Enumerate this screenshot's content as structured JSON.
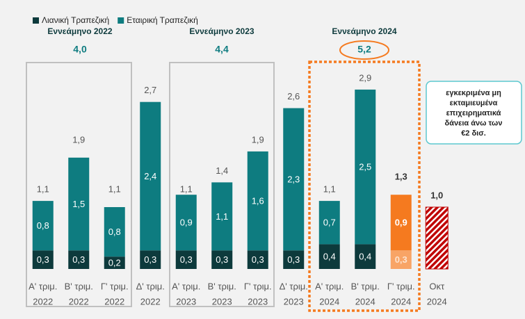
{
  "chart_data": {
    "type": "bar",
    "stacked": true,
    "legend": "top-left",
    "categories": [
      [
        "Α' τριμ.",
        "2022"
      ],
      [
        "Β' τριμ.",
        "2022"
      ],
      [
        "Γ' τριμ.",
        "2022"
      ],
      [
        "Δ' τριμ.",
        "2022"
      ],
      [
        "Α' τριμ.",
        "2023"
      ],
      [
        "Β' τριμ.",
        "2023"
      ],
      [
        "Γ' τριμ.",
        "2023"
      ],
      [
        "Δ' τριμ.",
        "2023"
      ],
      [
        "Α' τριμ.",
        "2024"
      ],
      [
        "Β' τριμ.",
        "2024"
      ],
      [
        "Γ' τριμ.",
        "2024"
      ],
      [
        "Οκτ",
        "2024"
      ]
    ],
    "series": [
      {
        "name": "Λιανική Τραπεζική",
        "color": "#0d3a3c",
        "values": [
          0.3,
          0.3,
          0.2,
          0.3,
          0.3,
          0.3,
          0.3,
          0.3,
          0.4,
          0.4,
          0.3,
          null
        ],
        "value_labels": [
          "0,3",
          "0,3",
          "0,2",
          "0,3",
          "0,3",
          "0,3",
          "0,3",
          "0,3",
          "0,4",
          "0,4",
          "0,3",
          null
        ],
        "colors": [
          "#0d3a3c",
          "#0d3a3c",
          "#0d3a3c",
          "#0d3a3c",
          "#0d3a3c",
          "#0d3a3c",
          "#0d3a3c",
          "#0d3a3c",
          "#0d3a3c",
          "#0d3a3c",
          "#f8a466",
          null
        ]
      },
      {
        "name": "Εταιρική Τραπεζική",
        "color": "#0e7c80",
        "values": [
          0.8,
          1.5,
          0.8,
          2.4,
          0.9,
          1.1,
          1.6,
          2.3,
          0.7,
          2.5,
          0.9,
          null
        ],
        "value_labels": [
          "0,8",
          "1,5",
          "0,8",
          "2,4",
          "0,9",
          "1,1",
          "1,6",
          "2,3",
          "0,7",
          "2,5",
          "0,9",
          null
        ],
        "colors": [
          "#0e7c80",
          "#0e7c80",
          "#0e7c80",
          "#0e7c80",
          "#0e7c80",
          "#0e7c80",
          "#0e7c80",
          "#0e7c80",
          "#0e7c80",
          "#0e7c80",
          "#f57a1f",
          null
        ]
      }
    ],
    "totals": {
      "values": [
        1.1,
        1.9,
        1.1,
        2.7,
        1.1,
        1.4,
        1.9,
        2.6,
        1.1,
        2.9,
        1.3,
        1.0
      ],
      "value_labels": [
        "1,1",
        "1,9",
        "1,1",
        "2,7",
        "1,1",
        "1,4",
        "1,9",
        "2,6",
        "1,1",
        "2,9",
        "1,3",
        "1,0"
      ],
      "hatch_color": "#c00000"
    },
    "groups": [
      {
        "title": "Εννεάμηνο 2022",
        "total": 4.0,
        "total_label": "4,0"
      },
      {
        "title": "Εννεάμηνο 2023",
        "total": 4.4,
        "total_label": "4,4"
      },
      {
        "title": "Εννεάμηνο 2024",
        "total": 5.2,
        "total_label": "5,2"
      }
    ],
    "annotation": [
      "εγκεκριμένα μη",
      "εκταμιευμένα",
      "επιχειρηματικά",
      "δάνεια άνω των",
      "€2 δισ."
    ],
    "ylim": [
      0,
      3
    ]
  }
}
